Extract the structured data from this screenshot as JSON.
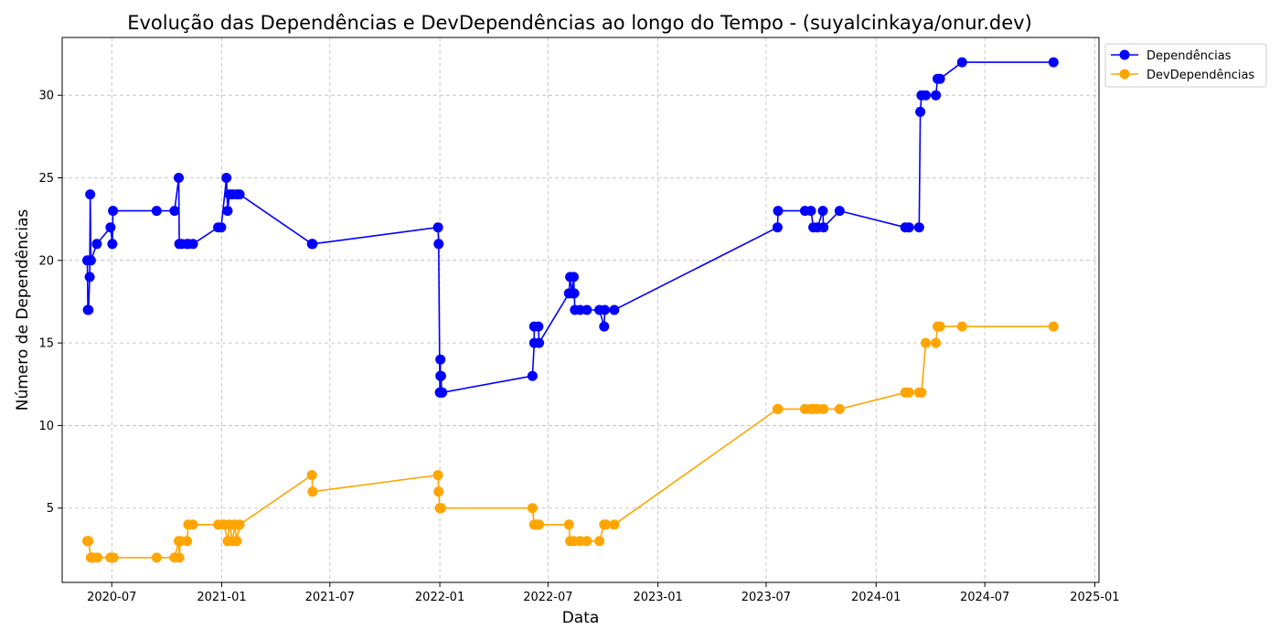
{
  "chart_data": {
    "type": "line",
    "title": "Evolução das Dependências e DevDependências ao longo do Tempo - (suyalcinkaya/onur.dev)",
    "xlabel": "Data",
    "ylabel": "Número de Dependências",
    "xlim": [
      "2020-04-09",
      "2025-01-08"
    ],
    "ylim": [
      0.5,
      33.5
    ],
    "xticks": [
      "2020-07",
      "2021-01",
      "2021-07",
      "2022-01",
      "2022-07",
      "2023-01",
      "2023-07",
      "2024-01",
      "2024-07",
      "2025-01"
    ],
    "yticks": [
      5,
      10,
      15,
      20,
      25,
      30
    ],
    "grid": true,
    "legend": "outside-top-right",
    "series": [
      {
        "name": "Dependências",
        "color": "#0000ff",
        "points": [
          [
            "2020-05-21",
            20
          ],
          [
            "2020-05-22",
            17
          ],
          [
            "2020-05-23",
            17
          ],
          [
            "2020-05-25",
            19
          ],
          [
            "2020-05-26",
            24
          ],
          [
            "2020-05-27",
            20
          ],
          [
            "2020-06-06",
            21
          ],
          [
            "2020-06-29",
            22
          ],
          [
            "2020-07-02",
            21
          ],
          [
            "2020-07-03",
            23
          ],
          [
            "2020-09-14",
            23
          ],
          [
            "2020-10-14",
            23
          ],
          [
            "2020-10-21",
            25
          ],
          [
            "2020-10-22",
            21
          ],
          [
            "2020-10-26",
            21
          ],
          [
            "2020-11-04",
            21
          ],
          [
            "2020-11-06",
            21
          ],
          [
            "2020-11-14",
            21
          ],
          [
            "2020-12-26",
            22
          ],
          [
            "2020-12-31",
            22
          ],
          [
            "2021-01-09",
            25
          ],
          [
            "2021-01-11",
            23
          ],
          [
            "2021-01-14",
            24
          ],
          [
            "2021-01-19",
            24
          ],
          [
            "2021-01-26",
            24
          ],
          [
            "2021-01-31",
            24
          ],
          [
            "2021-06-01",
            21
          ],
          [
            "2021-06-02",
            21
          ],
          [
            "2021-12-29",
            22
          ],
          [
            "2021-12-30",
            21
          ],
          [
            "2022-01-01",
            12
          ],
          [
            "2022-01-02",
            14
          ],
          [
            "2022-01-02",
            13
          ],
          [
            "2022-01-03",
            13
          ],
          [
            "2022-01-04",
            12
          ],
          [
            "2022-01-05",
            12
          ],
          [
            "2022-06-05",
            13
          ],
          [
            "2022-06-08",
            15
          ],
          [
            "2022-06-08",
            16
          ],
          [
            "2022-06-15",
            16
          ],
          [
            "2022-06-16",
            15
          ],
          [
            "2022-08-05",
            18
          ],
          [
            "2022-08-07",
            19
          ],
          [
            "2022-08-10",
            18
          ],
          [
            "2022-08-13",
            19
          ],
          [
            "2022-08-14",
            18
          ],
          [
            "2022-08-15",
            17
          ],
          [
            "2022-08-24",
            17
          ],
          [
            "2022-09-04",
            17
          ],
          [
            "2022-09-25",
            17
          ],
          [
            "2022-10-03",
            16
          ],
          [
            "2022-10-04",
            17
          ],
          [
            "2022-10-20",
            17
          ]
        ],
        "points_2": [
          [
            "2023-07-20",
            22
          ],
          [
            "2023-07-21",
            23
          ],
          [
            "2023-09-04",
            23
          ],
          [
            "2023-09-14",
            23
          ],
          [
            "2023-09-18",
            22
          ],
          [
            "2023-09-25",
            22
          ],
          [
            "2023-10-04",
            23
          ],
          [
            "2023-10-05",
            22
          ],
          [
            "2023-11-01",
            23
          ],
          [
            "2024-02-19",
            22
          ],
          [
            "2024-02-25",
            22
          ],
          [
            "2024-03-13",
            22
          ],
          [
            "2024-03-15",
            29
          ],
          [
            "2024-03-17",
            30
          ],
          [
            "2024-03-24",
            30
          ],
          [
            "2024-04-10",
            30
          ],
          [
            "2024-04-13",
            31
          ],
          [
            "2024-04-17",
            31
          ],
          [
            "2024-05-24",
            32
          ],
          [
            "2024-10-24",
            32
          ]
        ]
      },
      {
        "name": "DevDependências",
        "color": "#ffa500",
        "points": [
          [
            "2020-05-21",
            3
          ],
          [
            "2020-05-23",
            3
          ],
          [
            "2020-05-27",
            2
          ],
          [
            "2020-05-31",
            2
          ],
          [
            "2020-06-07",
            2
          ],
          [
            "2020-06-29",
            2
          ],
          [
            "2020-07-04",
            2
          ],
          [
            "2020-09-14",
            2
          ],
          [
            "2020-10-14",
            2
          ],
          [
            "2020-10-21",
            3
          ],
          [
            "2020-10-22",
            2
          ],
          [
            "2020-10-24",
            3
          ],
          [
            "2020-11-04",
            3
          ],
          [
            "2020-11-06",
            4
          ],
          [
            "2020-11-14",
            4
          ],
          [
            "2020-12-26",
            4
          ],
          [
            "2021-01-05",
            4
          ],
          [
            "2021-01-11",
            3
          ],
          [
            "2021-01-14",
            4
          ],
          [
            "2021-01-19",
            3
          ],
          [
            "2021-01-23",
            4
          ],
          [
            "2021-01-26",
            3
          ],
          [
            "2021-01-31",
            4
          ],
          [
            "2021-06-01",
            7
          ],
          [
            "2021-06-02",
            6
          ],
          [
            "2021-12-29",
            7
          ],
          [
            "2021-12-30",
            6
          ],
          [
            "2022-01-01",
            5
          ],
          [
            "2022-01-03",
            5
          ],
          [
            "2022-06-05",
            5
          ],
          [
            "2022-06-08",
            4
          ],
          [
            "2022-06-11",
            4
          ],
          [
            "2022-06-16",
            4
          ],
          [
            "2022-08-05",
            4
          ],
          [
            "2022-08-07",
            3
          ],
          [
            "2022-08-13",
            3
          ],
          [
            "2022-08-24",
            3
          ],
          [
            "2022-09-04",
            3
          ],
          [
            "2022-09-25",
            3
          ],
          [
            "2022-10-03",
            4
          ],
          [
            "2022-10-06",
            4
          ],
          [
            "2022-10-20",
            4
          ],
          [
            "2023-07-20",
            11
          ],
          [
            "2023-07-21",
            11
          ],
          [
            "2023-09-04",
            11
          ],
          [
            "2023-09-14",
            11
          ],
          [
            "2023-09-18",
            11
          ],
          [
            "2023-09-25",
            11
          ],
          [
            "2023-10-05",
            11
          ],
          [
            "2023-11-01",
            11
          ],
          [
            "2024-02-19",
            12
          ],
          [
            "2024-02-25",
            12
          ],
          [
            "2024-03-13",
            12
          ],
          [
            "2024-03-17",
            12
          ],
          [
            "2024-03-24",
            15
          ],
          [
            "2024-04-10",
            15
          ],
          [
            "2024-04-13",
            16
          ],
          [
            "2024-04-17",
            16
          ],
          [
            "2024-05-24",
            16
          ],
          [
            "2024-10-24",
            16
          ]
        ]
      }
    ]
  }
}
